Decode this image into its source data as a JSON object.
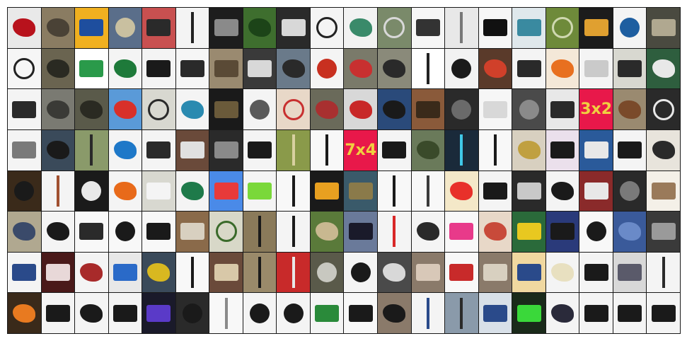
{
  "grid": {
    "columns": 20,
    "rows": 8,
    "tiles": [
      {
        "bg": "#e9e9e9",
        "fg": "#b8121c",
        "shape": "blob"
      },
      {
        "bg": "#8a7c62",
        "fg": "#4a4236",
        "shape": "blob"
      },
      {
        "bg": "#f0b020",
        "fg": "#1e4e9e",
        "shape": "rect"
      },
      {
        "bg": "#5a6e8a",
        "fg": "#c9c0a0",
        "shape": "circle"
      },
      {
        "bg": "#c85050",
        "fg": "#2a2a2a",
        "shape": "rect"
      },
      {
        "bg": "#f4f4f4",
        "fg": "#222222",
        "shape": "pole"
      },
      {
        "bg": "#1d1d1d",
        "fg": "#8a8a8a",
        "shape": "rect"
      },
      {
        "bg": "#3e6e2e",
        "fg": "#1c4418",
        "shape": "blob"
      },
      {
        "bg": "#2a2a2a",
        "fg": "#d8d8d8",
        "shape": "rect"
      },
      {
        "bg": "#f4f4f4",
        "fg": "#222222",
        "shape": "ring"
      },
      {
        "bg": "#f2f2f2",
        "fg": "#3a8a6a",
        "shape": "blob"
      },
      {
        "bg": "#7a8a6a",
        "fg": "#d8d8d8",
        "shape": "ring"
      },
      {
        "bg": "#f6f6f6",
        "fg": "#333333",
        "shape": "rect"
      },
      {
        "bg": "#e8e8e8",
        "fg": "#777777",
        "shape": "pole"
      },
      {
        "bg": "#f6f6f6",
        "fg": "#111111",
        "shape": "rect"
      },
      {
        "bg": "#dfe8ec",
        "fg": "#3a8aa0",
        "shape": "rect"
      },
      {
        "bg": "#6e8a3a",
        "fg": "#cfd8b0",
        "shape": "ring"
      },
      {
        "bg": "#1c1c1c",
        "fg": "#e0a030",
        "shape": "rect"
      },
      {
        "bg": "#f4f4f4",
        "fg": "#1e5ea0",
        "shape": "circle"
      },
      {
        "bg": "#4a4a40",
        "fg": "#b0a890",
        "shape": "rect"
      },
      {
        "bg": "#f6f6f6",
        "fg": "#222222",
        "shape": "ring"
      },
      {
        "bg": "#6a6450",
        "fg": "#2a2a22",
        "shape": "blob"
      },
      {
        "bg": "#ffffff",
        "fg": "#2a9a4a",
        "shape": "rect"
      },
      {
        "bg": "#f4f4f4",
        "fg": "#1e7a3a",
        "shape": "blob"
      },
      {
        "bg": "#f4f4f4",
        "fg": "#1a1a1a",
        "shape": "rect"
      },
      {
        "bg": "#f6f6f6",
        "fg": "#2a2a2a",
        "shape": "rect"
      },
      {
        "bg": "#9a8a70",
        "fg": "#5a4a36",
        "shape": "rect"
      },
      {
        "bg": "#3a3a3a",
        "fg": "#d8d8d8",
        "shape": "rect"
      },
      {
        "bg": "#6a7a8a",
        "fg": "#2a2a2a",
        "shape": "blob"
      },
      {
        "bg": "#f4f4f4",
        "fg": "#c83020",
        "shape": "circle"
      },
      {
        "bg": "#7a7a6a",
        "fg": "#c83030",
        "shape": "blob"
      },
      {
        "bg": "#8a8a7a",
        "fg": "#2a2a2a",
        "shape": "blob"
      },
      {
        "bg": "#ffffff",
        "fg": "#222222",
        "shape": "pole"
      },
      {
        "bg": "#f2f2f2",
        "fg": "#1a1a1a",
        "shape": "circle"
      },
      {
        "bg": "#5a3a2a",
        "fg": "#d0402a",
        "shape": "blob"
      },
      {
        "bg": "#f4f4f4",
        "fg": "#2a2a2a",
        "shape": "rect"
      },
      {
        "bg": "#f4e8d8",
        "fg": "#e87020",
        "shape": "blob"
      },
      {
        "bg": "#f4f4f4",
        "fg": "#cacaca",
        "shape": "rect"
      },
      {
        "bg": "#d8d8d0",
        "fg": "#2a2a2a",
        "shape": "rect"
      },
      {
        "bg": "#2e5e3e",
        "fg": "#e8e8e8",
        "shape": "blob"
      },
      {
        "bg": "#f4f4f4",
        "fg": "#2a2a2a",
        "shape": "rect"
      },
      {
        "bg": "#7a7a72",
        "fg": "#3a3a36",
        "shape": "blob"
      },
      {
        "bg": "#5a5a4a",
        "fg": "#2a2a22",
        "shape": "blob"
      },
      {
        "bg": "#5a9ad8",
        "fg": "#d8302a",
        "shape": "blob"
      },
      {
        "bg": "#d8d8d0",
        "fg": "#2a2a2a",
        "shape": "ring"
      },
      {
        "bg": "#f4f4f4",
        "fg": "#2a8ab0",
        "shape": "blob"
      },
      {
        "bg": "#1a1a1a",
        "fg": "#6a5a3a",
        "shape": "rect"
      },
      {
        "bg": "#f4f4f4",
        "fg": "#5a5a5a",
        "shape": "circle"
      },
      {
        "bg": "#e8d8c8",
        "fg": "#c83030",
        "shape": "ring"
      },
      {
        "bg": "#6a6a5a",
        "fg": "#a83030",
        "shape": "blob"
      },
      {
        "bg": "#d8d8d8",
        "fg": "#c82828",
        "shape": "blob"
      },
      {
        "bg": "#2a4a7a",
        "fg": "#1a1a1a",
        "shape": "blob"
      },
      {
        "bg": "#8a5a3a",
        "fg": "#3a2a1a",
        "shape": "rect"
      },
      {
        "bg": "#2a2a2a",
        "fg": "#6a6a6a",
        "shape": "circle"
      },
      {
        "bg": "#f6f6f6",
        "fg": "#d8d8d8",
        "shape": "rect"
      },
      {
        "bg": "#4a4a4a",
        "fg": "#8a8a8a",
        "shape": "circle"
      },
      {
        "bg": "#e8e8e8",
        "fg": "#2a2a2a",
        "shape": "rect"
      },
      {
        "bg": "#e8184a",
        "fg": "#f0d040",
        "shape": "text",
        "text": "3x2"
      },
      {
        "bg": "#9a8a70",
        "fg": "#7a4a2a",
        "shape": "blob"
      },
      {
        "bg": "#2a2a2a",
        "fg": "#e8e8e8",
        "shape": "ring"
      },
      {
        "bg": "#f4f4f4",
        "fg": "#7a7a7a",
        "shape": "rect"
      },
      {
        "bg": "#3a4a5a",
        "fg": "#1a1a1a",
        "shape": "blob"
      },
      {
        "bg": "#8a9a6a",
        "fg": "#2a2a2a",
        "shape": "pole"
      },
      {
        "bg": "#f4f4f4",
        "fg": "#1e78c8",
        "shape": "blob"
      },
      {
        "bg": "#f4f4f4",
        "fg": "#2a2a2a",
        "shape": "rect"
      },
      {
        "bg": "#6a4a3a",
        "fg": "#e0e0e0",
        "shape": "rect"
      },
      {
        "bg": "#2a2a2a",
        "fg": "#8a8a8a",
        "shape": "rect"
      },
      {
        "bg": "#f4f4f4",
        "fg": "#1a1a1a",
        "shape": "rect"
      },
      {
        "bg": "#8a9a4a",
        "fg": "#d8d0a0",
        "shape": "pole"
      },
      {
        "bg": "#f8f8f8",
        "fg": "#1a1a1a",
        "shape": "pole"
      },
      {
        "bg": "#e8184a",
        "fg": "#f0d040",
        "shape": "text",
        "text": "7x4"
      },
      {
        "bg": "#f4f4f4",
        "fg": "#1a1a1a",
        "shape": "rect"
      },
      {
        "bg": "#6a7a5a",
        "fg": "#3a4a2a",
        "shape": "blob"
      },
      {
        "bg": "#1a2a3a",
        "fg": "#40c8e8",
        "shape": "pole"
      },
      {
        "bg": "#f8f8f8",
        "fg": "#1a1a1a",
        "shape": "pole"
      },
      {
        "bg": "#d8d0c0",
        "fg": "#c0a040",
        "shape": "blob"
      },
      {
        "bg": "#ebe0ec",
        "fg": "#1a1a1a",
        "shape": "rect"
      },
      {
        "bg": "#2a5a9a",
        "fg": "#e8e8e8",
        "shape": "rect"
      },
      {
        "bg": "#f4f4f4",
        "fg": "#1a1a1a",
        "shape": "rect"
      },
      {
        "bg": "#e8e4dc",
        "fg": "#2a2a2a",
        "shape": "blob"
      },
      {
        "bg": "#3a2a1a",
        "fg": "#1a1a1a",
        "shape": "circle"
      },
      {
        "bg": "#f4f4f4",
        "fg": "#a05030",
        "shape": "pole"
      },
      {
        "bg": "#1a1a1a",
        "fg": "#e8e8e8",
        "shape": "circle"
      },
      {
        "bg": "#f4f4f4",
        "fg": "#e86a1a",
        "shape": "blob"
      },
      {
        "bg": "#d8d8d0",
        "fg": "#f4f4f4",
        "shape": "rect"
      },
      {
        "bg": "#f4f4f4",
        "fg": "#1e7a4a",
        "shape": "blob"
      },
      {
        "bg": "#4a8ae8",
        "fg": "#e83a3a",
        "shape": "rect"
      },
      {
        "bg": "#f4f4f4",
        "fg": "#7ad83a",
        "shape": "rect"
      },
      {
        "bg": "#f8f8f8",
        "fg": "#1a1a1a",
        "shape": "pole"
      },
      {
        "bg": "#1a1a1a",
        "fg": "#e8a020",
        "shape": "rect"
      },
      {
        "bg": "#3a5a6a",
        "fg": "#8a7a4a",
        "shape": "rect"
      },
      {
        "bg": "#f8f8f8",
        "fg": "#1a1a1a",
        "shape": "pole"
      },
      {
        "bg": "#f8f8f8",
        "fg": "#3a3a3a",
        "shape": "pole"
      },
      {
        "bg": "#f4e8c8",
        "fg": "#e8302a",
        "shape": "blob"
      },
      {
        "bg": "#f4f4f4",
        "fg": "#1a1a1a",
        "shape": "rect"
      },
      {
        "bg": "#2a2a2a",
        "fg": "#c8c8c8",
        "shape": "rect"
      },
      {
        "bg": "#f4f4f4",
        "fg": "#1a1a1a",
        "shape": "blob"
      },
      {
        "bg": "#8a2a2a",
        "fg": "#e8e8e8",
        "shape": "rect"
      },
      {
        "bg": "#2a2a2a",
        "fg": "#7a7a7a",
        "shape": "circle"
      },
      {
        "bg": "#f4f0e8",
        "fg": "#9a7a5a",
        "shape": "rect"
      },
      {
        "bg": "#b0a890",
        "fg": "#3a4a6a",
        "shape": "blob"
      },
      {
        "bg": "#f4f4f4",
        "fg": "#1a1a1a",
        "shape": "blob"
      },
      {
        "bg": "#f8f8f8",
        "fg": "#2a2a2a",
        "shape": "rect"
      },
      {
        "bg": "#f8f8f8",
        "fg": "#1a1a1a",
        "shape": "circle"
      },
      {
        "bg": "#f8f8f8",
        "fg": "#1a1a1a",
        "shape": "rect"
      },
      {
        "bg": "#8a6a4a",
        "fg": "#d8d0c0",
        "shape": "rect"
      },
      {
        "bg": "#d8d8c8",
        "fg": "#3a6a2a",
        "shape": "ring"
      },
      {
        "bg": "#8a7a5a",
        "fg": "#1a1a1a",
        "shape": "pole"
      },
      {
        "bg": "#f4f4f4",
        "fg": "#1a1a1a",
        "shape": "pole"
      },
      {
        "bg": "#5a7a3a",
        "fg": "#c8b890",
        "shape": "blob"
      },
      {
        "bg": "#6a7a9a",
        "fg": "#1a1a2a",
        "shape": "rect"
      },
      {
        "bg": "#f4f4f4",
        "fg": "#d82828",
        "shape": "pole"
      },
      {
        "bg": "#f4f4f4",
        "fg": "#2a2a2a",
        "shape": "blob"
      },
      {
        "bg": "#f8f8f8",
        "fg": "#e83a8a",
        "shape": "rect"
      },
      {
        "bg": "#e8d8c8",
        "fg": "#c84a3a",
        "shape": "blob"
      },
      {
        "bg": "#2a6a3a",
        "fg": "#e8c820",
        "shape": "rect"
      },
      {
        "bg": "#2a3a7a",
        "fg": "#1a1a1a",
        "shape": "rect"
      },
      {
        "bg": "#f8f8f8",
        "fg": "#1a1a1a",
        "shape": "circle"
      },
      {
        "bg": "#3a5a9a",
        "fg": "#6a8ac8",
        "shape": "blob"
      },
      {
        "bg": "#3a3a3a",
        "fg": "#9a9a9a",
        "shape": "rect"
      },
      {
        "bg": "#f4f4f4",
        "fg": "#2a4a8a",
        "shape": "rect"
      },
      {
        "bg": "#4a1a1a",
        "fg": "#e8d8d8",
        "shape": "rect"
      },
      {
        "bg": "#f4f4f4",
        "fg": "#a82a2a",
        "shape": "blob"
      },
      {
        "bg": "#e8e8e8",
        "fg": "#2a6ac8",
        "shape": "rect"
      },
      {
        "bg": "#3a4a5a",
        "fg": "#d8b820",
        "shape": "blob"
      },
      {
        "bg": "#f8f8f8",
        "fg": "#1a1a1a",
        "shape": "pole"
      },
      {
        "bg": "#6a4a3a",
        "fg": "#d8c8a8",
        "shape": "rect"
      },
      {
        "bg": "#9a8a6a",
        "fg": "#1a1a1a",
        "shape": "pole"
      },
      {
        "bg": "#c82a2a",
        "fg": "#e8e8e8",
        "shape": "pole"
      },
      {
        "bg": "#5a5a4a",
        "fg": "#c8c8c0",
        "shape": "circle"
      },
      {
        "bg": "#f4f4f4",
        "fg": "#1a1a1a",
        "shape": "circle"
      },
      {
        "bg": "#4a4a4a",
        "fg": "#d8d8d8",
        "shape": "blob"
      },
      {
        "bg": "#8a7a6a",
        "fg": "#d8c8b8",
        "shape": "rect"
      },
      {
        "bg": "#f8f8f8",
        "fg": "#c82a2a",
        "shape": "rect"
      },
      {
        "bg": "#8a7a6a",
        "fg": "#d8d0c0",
        "shape": "rect"
      },
      {
        "bg": "#f0d8a0",
        "fg": "#2a4a8a",
        "shape": "rect"
      },
      {
        "bg": "#f4f4f4",
        "fg": "#e8e0c0",
        "shape": "blob"
      },
      {
        "bg": "#f4f4f4",
        "fg": "#1a1a1a",
        "shape": "rect"
      },
      {
        "bg": "#d8d8d8",
        "fg": "#5a5a6a",
        "shape": "rect"
      },
      {
        "bg": "#f4f4f4",
        "fg": "#2a2a2a",
        "shape": "pole"
      },
      {
        "bg": "#3a2a1a",
        "fg": "#e87a20",
        "shape": "blob"
      },
      {
        "bg": "#f4f4f4",
        "fg": "#1a1a1a",
        "shape": "rect"
      },
      {
        "bg": "#f4f4f4",
        "fg": "#1a1a1a",
        "shape": "blob"
      },
      {
        "bg": "#f4f4f4",
        "fg": "#1a1a1a",
        "shape": "rect"
      },
      {
        "bg": "#1a1a2a",
        "fg": "#5a3ac8",
        "shape": "rect"
      },
      {
        "bg": "#2a2a2a",
        "fg": "#1a1a1a",
        "shape": "circle"
      },
      {
        "bg": "#f8f8f8",
        "fg": "#8a8a8a",
        "shape": "pole"
      },
      {
        "bg": "#f4f4f4",
        "fg": "#1a1a1a",
        "shape": "circle"
      },
      {
        "bg": "#f4f4f4",
        "fg": "#1a1a1a",
        "shape": "circle"
      },
      {
        "bg": "#f4f4f4",
        "fg": "#2a8a3a",
        "shape": "rect"
      },
      {
        "bg": "#f8f8f8",
        "fg": "#1a1a1a",
        "shape": "rect"
      },
      {
        "bg": "#8a7a6a",
        "fg": "#1a1a1a",
        "shape": "blob"
      },
      {
        "bg": "#f4f4f4",
        "fg": "#2a4a8a",
        "shape": "pole"
      },
      {
        "bg": "#8a9aaa",
        "fg": "#2a2a2a",
        "shape": "pole"
      },
      {
        "bg": "#d8e0e8",
        "fg": "#2a4a8a",
        "shape": "rect"
      },
      {
        "bg": "#1a2a1a",
        "fg": "#3ad83a",
        "shape": "rect"
      },
      {
        "bg": "#f4f4f4",
        "fg": "#2a2a3a",
        "shape": "blob"
      },
      {
        "bg": "#f4f4f4",
        "fg": "#1a1a1a",
        "shape": "rect"
      },
      {
        "bg": "#f4f4f4",
        "fg": "#1a1a1a",
        "shape": "rect"
      },
      {
        "bg": "#f4f4f4",
        "fg": "#1a1a1a",
        "shape": "rect"
      }
    ]
  }
}
